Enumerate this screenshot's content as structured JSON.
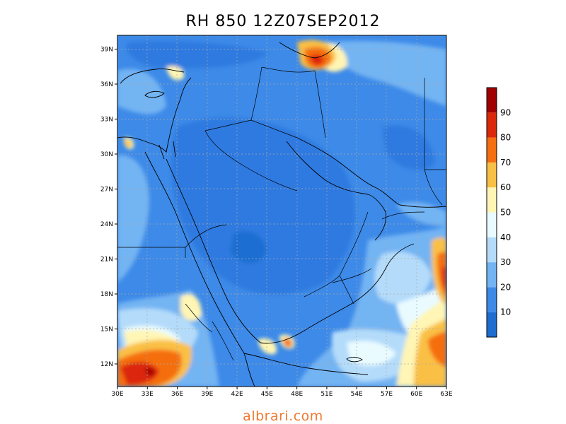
{
  "title": "RH 850 12Z07SEP2012",
  "watermark": "albrari.com",
  "lon_labels": [
    "30E",
    "33E",
    "36E",
    "39E",
    "42E",
    "45E",
    "48E",
    "51E",
    "54E",
    "57E",
    "60E",
    "63E"
  ],
  "lat_labels": [
    "12N",
    "15N",
    "18N",
    "21N",
    "24N",
    "27N",
    "30N",
    "33N",
    "36N",
    "39N"
  ],
  "colorbar": {
    "labels": [
      "10",
      "20",
      "30",
      "40",
      "50",
      "60",
      "70",
      "80",
      "90"
    ],
    "colors": [
      "#1e6ed2",
      "#3d8ae8",
      "#73b4f3",
      "#b4dcfa",
      "#e9fbff",
      "#fff5b4",
      "#fac045",
      "#f56e0f",
      "#dc280a",
      "#a00000"
    ]
  },
  "colors": {
    "ocean_blue": "#3d8ae8",
    "border": "#000000"
  }
}
